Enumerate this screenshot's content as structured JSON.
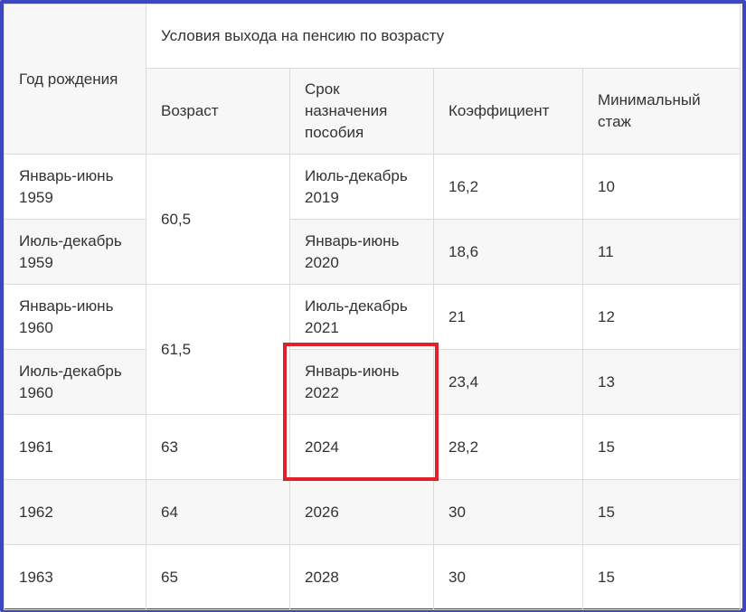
{
  "table": {
    "header": {
      "birth_year": "Год рождения",
      "group": "Условия выхода на пенсию по возрасту",
      "age": "Возраст",
      "term": "Срок назначения пособия",
      "coef": "Коэффициент",
      "min_exp": "Минимальный стаж"
    },
    "rows": [
      {
        "year": "Январь-июнь 1959",
        "age": "60,5",
        "term": "Июль-декабрь 2019",
        "coef": "16,2",
        "exp": "10"
      },
      {
        "year": "Июль-декабрь 1959",
        "term": "Январь-июнь 2020",
        "coef": "18,6",
        "exp": "11"
      },
      {
        "year": "Январь-июнь 1960",
        "age": "61,5",
        "term": "Июль-декабрь 2021",
        "coef": "21",
        "exp": "12"
      },
      {
        "year": "Июль-декабрь 1960",
        "term": "Январь-июнь 2022",
        "coef": "23,4",
        "exp": "13"
      },
      {
        "year": "1961",
        "age": "63",
        "term": "2024",
        "coef": "28,2",
        "exp": "15"
      },
      {
        "year": "1962",
        "age": "64",
        "term": "2026",
        "coef": "30",
        "exp": "15"
      },
      {
        "year": "1963",
        "age": "65",
        "term": "2028",
        "coef": "30",
        "exp": "15"
      }
    ]
  },
  "colors": {
    "frame": "#3d47c4",
    "highlight": "#e0202a",
    "border": "#dcdcdc",
    "stripe": "#f7f7f7"
  }
}
